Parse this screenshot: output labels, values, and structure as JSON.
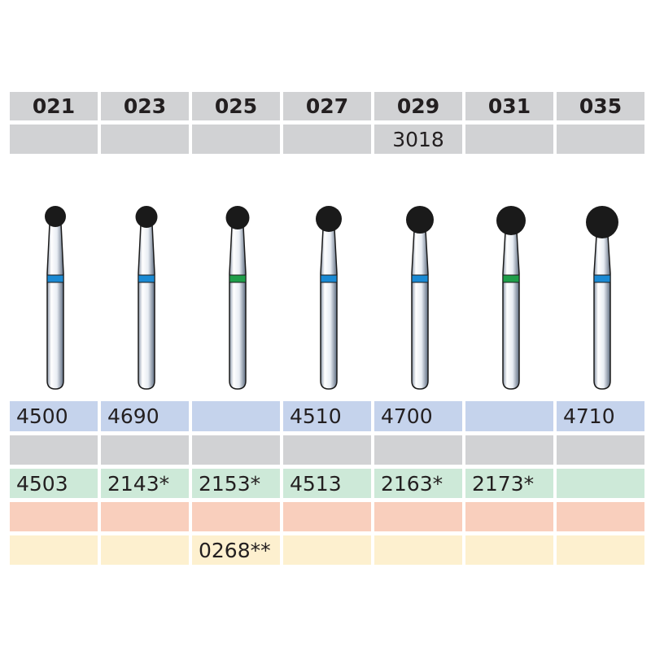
{
  "columns": [
    {
      "size": "021",
      "ref": "",
      "band": "blue",
      "row_blue": "4500",
      "row_gray": "",
      "row_green": "4503",
      "row_salmon": "",
      "row_yellow": ""
    },
    {
      "size": "023",
      "ref": "",
      "band": "blue",
      "row_blue": "4690",
      "row_gray": "",
      "row_green": "2143*",
      "row_salmon": "",
      "row_yellow": ""
    },
    {
      "size": "025",
      "ref": "",
      "band": "green",
      "row_blue": "",
      "row_gray": "",
      "row_green": "2153*",
      "row_salmon": "",
      "row_yellow": "0268**"
    },
    {
      "size": "027",
      "ref": "",
      "band": "blue",
      "row_blue": "4510",
      "row_gray": "",
      "row_green": "4513",
      "row_salmon": "",
      "row_yellow": ""
    },
    {
      "size": "029",
      "ref": "3018",
      "band": "blue",
      "row_blue": "4700",
      "row_gray": "",
      "row_green": "2163*",
      "row_salmon": "",
      "row_yellow": ""
    },
    {
      "size": "031",
      "ref": "",
      "band": "green",
      "row_blue": "",
      "row_gray": "",
      "row_green": "2173*",
      "row_salmon": "",
      "row_yellow": ""
    },
    {
      "size": "035",
      "ref": "",
      "band": "blue",
      "row_blue": "4710",
      "row_gray": "",
      "row_green": "",
      "row_salmon": "",
      "row_yellow": ""
    }
  ],
  "colors": {
    "header": "#d1d2d4",
    "row_blue": "#c5d3ec",
    "row_gray": "#d1d2d4",
    "row_green": "#cde9d8",
    "row_salmon": "#f9cfbd",
    "row_yellow": "#fdf0cf",
    "band_blue": "#1a8ad4",
    "band_green": "#1f9e4a",
    "head": "#1a1a1a"
  }
}
